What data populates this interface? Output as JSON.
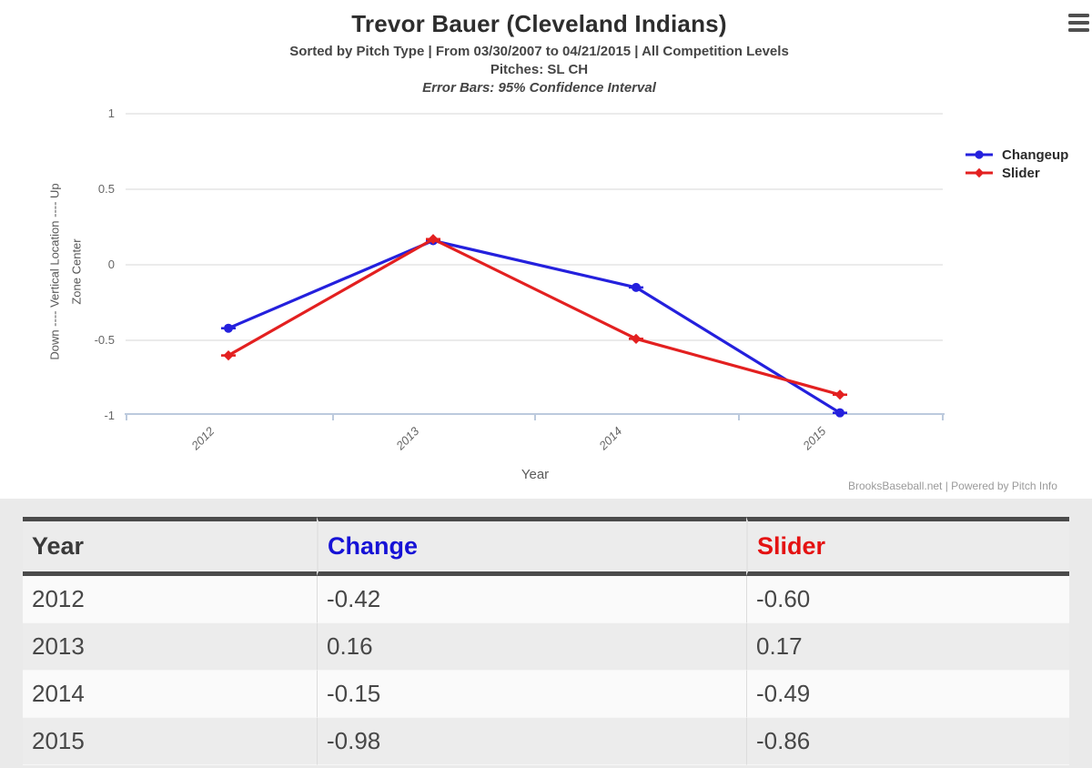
{
  "header": {
    "title": "Trevor Bauer (Cleveland Indians)",
    "subtitle": "Sorted by Pitch Type | From 03/30/2007 to 04/21/2015 | All Competition Levels",
    "pitches_line": "Pitches: SL CH",
    "error_bars_line": "Error Bars: 95% Confidence Interval"
  },
  "icons": {
    "menu": "hamburger"
  },
  "chart_data": {
    "type": "line",
    "title": "Trevor Bauer (Cleveland Indians)",
    "categories": [
      "2012",
      "2013",
      "2014",
      "2015"
    ],
    "series": [
      {
        "name": "Changeup",
        "color": "#2420dd",
        "marker": "circle",
        "values": [
          -0.42,
          0.16,
          -0.15,
          -0.98
        ]
      },
      {
        "name": "Slider",
        "color": "#e32020",
        "marker": "diamond",
        "values": [
          -0.6,
          0.17,
          -0.49,
          -0.86
        ]
      }
    ],
    "xlabel": "Year",
    "ylabel_outer": "Down ---- Vertical Location ---- Up",
    "ylabel_inner": "Zone Center",
    "yticks": [
      1,
      0.5,
      0,
      -0.5,
      -1
    ],
    "ytick_labels": [
      "1",
      "0.5",
      "0",
      "-0.5",
      "-1"
    ],
    "ylim": [
      -1,
      1
    ],
    "grid": true,
    "legend_position": "right",
    "error_bars": "95% Confidence Interval"
  },
  "footer_credit": "BrooksBaseball.net | Powered by Pitch Info",
  "table": {
    "columns": [
      {
        "label": "Year",
        "color": "#3a3a3a"
      },
      {
        "label": "Change",
        "color": "#1612d6"
      },
      {
        "label": "Slider",
        "color": "#e41212"
      }
    ],
    "rows": [
      [
        "2012",
        "-0.42",
        "-0.60"
      ],
      [
        "2013",
        "0.16",
        "0.17"
      ],
      [
        "2014",
        "-0.15",
        "-0.49"
      ],
      [
        "2015",
        "-0.98",
        "-0.86"
      ]
    ]
  }
}
